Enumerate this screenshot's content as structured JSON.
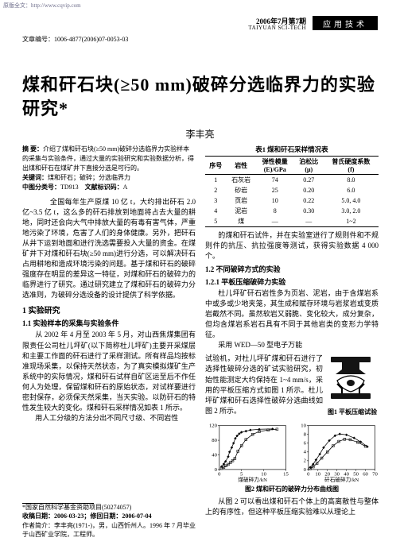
{
  "header": {
    "url": "原版全文：http://www.cqvip.com",
    "date_line": "2006年7月第7期",
    "eng_line": "TAIYUAN SCI-TECH",
    "section_box": "应用技术",
    "article_code": "文章编号：1006-4877(2006)07-0053-03"
  },
  "title": "煤和矸石块(≥50 mm)破碎分选临界力的实验研究*",
  "author": "李丰亮",
  "abstract": {
    "label": "摘 要：",
    "text": "介绍了煤和矸石块(≥50 mm)破碎分选临界力实验样本的采集与实验条件，通过大量的实验研究和实验数据分析，得出煤和矸石在煤矿井下直接分选是可行的。"
  },
  "keywords": {
    "label": "关键词：",
    "text": "煤和矸石；破碎；分选临界力"
  },
  "clc": {
    "label": "中图分类号：",
    "text": "TD913"
  },
  "doccode": {
    "label": "文献标识码：",
    "text": "A"
  },
  "intro": "　　全国每年生产原煤 10 亿 t，大约排出矸石 2.0 亿~3.5 亿 t，这么多的矸石排放到地面将占去大量的耕地，同时还会向大气中排放大量的有毒有害气体，严重地污染了环境，危害了人们的身体健康。另外，把矸石从井下运到地面和进行洗选需要投入大量的资金。在煤矿井下对煤和矸石块(≥50 mm)进行分选，可以解决矸石占用耕地和造成环境污染的问题。基于煤和矸石的破碎强度存在明显的差异这一特征，对煤和矸石的破碎力的临界进行了研究。通过研究建立了煤和矸石的破碎力分选准则，为破碎分选设备的设计提供了科学依据。",
  "s1": "1 实验研究",
  "s11": "1.1 实验样本的采集与实验条件",
  "p11a": "从 2002 年 4 月至 2003 年 5 月，对山西焦煤集团有限责任公司杜儿坪矿(以下简称杜儿坪矿)主要开采煤层和主要工作面的矸石进行了采样测试。所有样品均按标准现场采集，以保持天然状态，为了真实模拟煤矿生产系统中的实际情况，煤和矸石试样自矿区运至后不作任何人为处理，保留煤和矸石的原始状态，对试样要进行密封保存，必须保天然采集，当天实验。以防矸石的特性发生较大的变化。煤和矸石采样情况如表 1 所示。",
  "p11b": "用人工分级的方法分出不同尺寸级、不同岩性",
  "table1": {
    "title": "表1 煤和矸石采样情况表",
    "columns": [
      "序号",
      "岩性",
      "弹性模量\\n(E)/GPa",
      "泊松比\\n(μ)",
      "普氏硬度系数\\n(f)"
    ],
    "rows": [
      [
        "1",
        "石灰岩",
        "74",
        "0.27",
        "8.0"
      ],
      [
        "2",
        "砂岩",
        "25",
        "0.20",
        "6.0"
      ],
      [
        "3",
        "页岩",
        "10",
        "0.22",
        "5.0, 4.0"
      ],
      [
        "4",
        "泥岩",
        "8",
        "0.30",
        "3.0, 2.0"
      ],
      [
        "5",
        "煤",
        "—",
        "—",
        "1~2"
      ]
    ],
    "col_align": [
      "center",
      "center",
      "center",
      "center",
      "center"
    ],
    "border_color": "#000000",
    "font_size": 8
  },
  "p_right1": "的煤和矸石试件，并在实验室进行了规则件和不规则件的抗压、抗拉强度等测试，获得实验数据 4 000 个。",
  "s12": "1.2 不同破碎方式的实验",
  "s121": "1.2.1 平板压缩破碎力实验",
  "p121": "杜儿坪矿矸石岩性多为页岩、泥岩，由于含煤岩系中或多或少地夹笼，其生成和赋存环境与岩浆岩或变质岩截然不同。虽然软岩又弱脆、变化较大，成分复杂，但均含煤岩系岩石具有不同于其他岩类的变形力学特征。",
  "p122a": "采用 WED—50 型电子万能",
  "p122_flow": "试验机，对杜儿坪矿煤和矸石进行了选择性破碎分选的矿试实验研究，初始性能测定大约保持在 1~4 mm/s，采用的平板压缩方式如图 1 所示。杜儿坪矿煤和矸石选择性破碎分选曲线如图 2 所示。",
  "fig1": {
    "caption": "图1 平板压缩试验",
    "stroke": "#000000",
    "fill": "#141414"
  },
  "charts": {
    "left": {
      "type": "scatter",
      "title": "",
      "xlim": [
        0,
        15
      ],
      "xticks": [
        0,
        5,
        10,
        15
      ],
      "ylim": [
        0,
        120
      ],
      "yticks": [
        0,
        40,
        80,
        120
      ],
      "xlabel": "煤破碎力/kN",
      "ylabel": "",
      "series_a": {
        "marker": "diamond",
        "color": "#000000",
        "points": [
          [
            0.5,
            8
          ],
          [
            1,
            15
          ],
          [
            1.4,
            22
          ],
          [
            2,
            35
          ],
          [
            2.3,
            48
          ],
          [
            2.8,
            60
          ],
          [
            3.2,
            72
          ],
          [
            3.6,
            85
          ],
          [
            4,
            92
          ],
          [
            4.5,
            98
          ],
          [
            5,
            102
          ],
          [
            6,
            105
          ],
          [
            7,
            108
          ],
          [
            9,
            110
          ],
          [
            12,
            111
          ]
        ]
      },
      "series_b": {
        "marker": "square",
        "color": "#000000",
        "points": [
          [
            0.5,
            3
          ],
          [
            1,
            6
          ],
          [
            1.5,
            10
          ],
          [
            2,
            14
          ],
          [
            2.5,
            19
          ],
          [
            3,
            24
          ],
          [
            3.5,
            30
          ],
          [
            4.2,
            50
          ],
          [
            5,
            65
          ],
          [
            6,
            82
          ],
          [
            7.5,
            96
          ],
          [
            9,
            104
          ],
          [
            11,
            108
          ],
          [
            13,
            110
          ]
        ]
      },
      "grid": false,
      "axis_color": "#000000",
      "font_size": 7
    },
    "right": {
      "type": "scatter",
      "title": "",
      "xlim": [
        0,
        70
      ],
      "xticks": [
        0,
        10,
        20,
        30,
        40,
        50,
        60,
        70
      ],
      "ylim": [
        0,
        10
      ],
      "yticks": [
        0,
        2,
        4,
        6,
        8,
        10
      ],
      "xlabel": "矸石破碎力/kN",
      "ylabel": "",
      "series_a": {
        "marker": "diamond",
        "color": "#000000",
        "points": [
          [
            2,
            0.5
          ],
          [
            5,
            1.2
          ],
          [
            8,
            2.2
          ],
          [
            12,
            3.5
          ],
          [
            16,
            5
          ],
          [
            22,
            6.6
          ],
          [
            28,
            7.7
          ],
          [
            33,
            8.1
          ],
          [
            40,
            7.9
          ],
          [
            48,
            7.2
          ],
          [
            55,
            6.3
          ],
          [
            62,
            5.2
          ]
        ]
      },
      "series_b": {
        "marker": "square",
        "color": "#000000",
        "points": [
          [
            2,
            0.2
          ],
          [
            5,
            0.6
          ],
          [
            9,
            1.4
          ],
          [
            14,
            2.6
          ],
          [
            20,
            4.0
          ],
          [
            26,
            5.4
          ],
          [
            32,
            6.4
          ],
          [
            38,
            6.9
          ],
          [
            44,
            6.8
          ],
          [
            52,
            6.2
          ],
          [
            60,
            5.3
          ]
        ]
      },
      "grid": false,
      "axis_color": "#000000",
      "font_size": 7
    },
    "row_caption": "图2 煤和矸石的破碎力分布曲线图"
  },
  "p_conclude": "从图 2 可以看出煤和矸石个体上的高离散性与整体上的有序性，但这种平板压缩实验难以从理论上",
  "footer": {
    "fund": "*国家自然科学基金资助项目(50274057)",
    "dates": "收稿日期：2006-03-23；修回日期：2006-07-04",
    "author_info": "作者简介：李丰亮(1971-)，男，山西忻州人。1996 年 7 月毕业于山西矿业学院，工程师。"
  }
}
